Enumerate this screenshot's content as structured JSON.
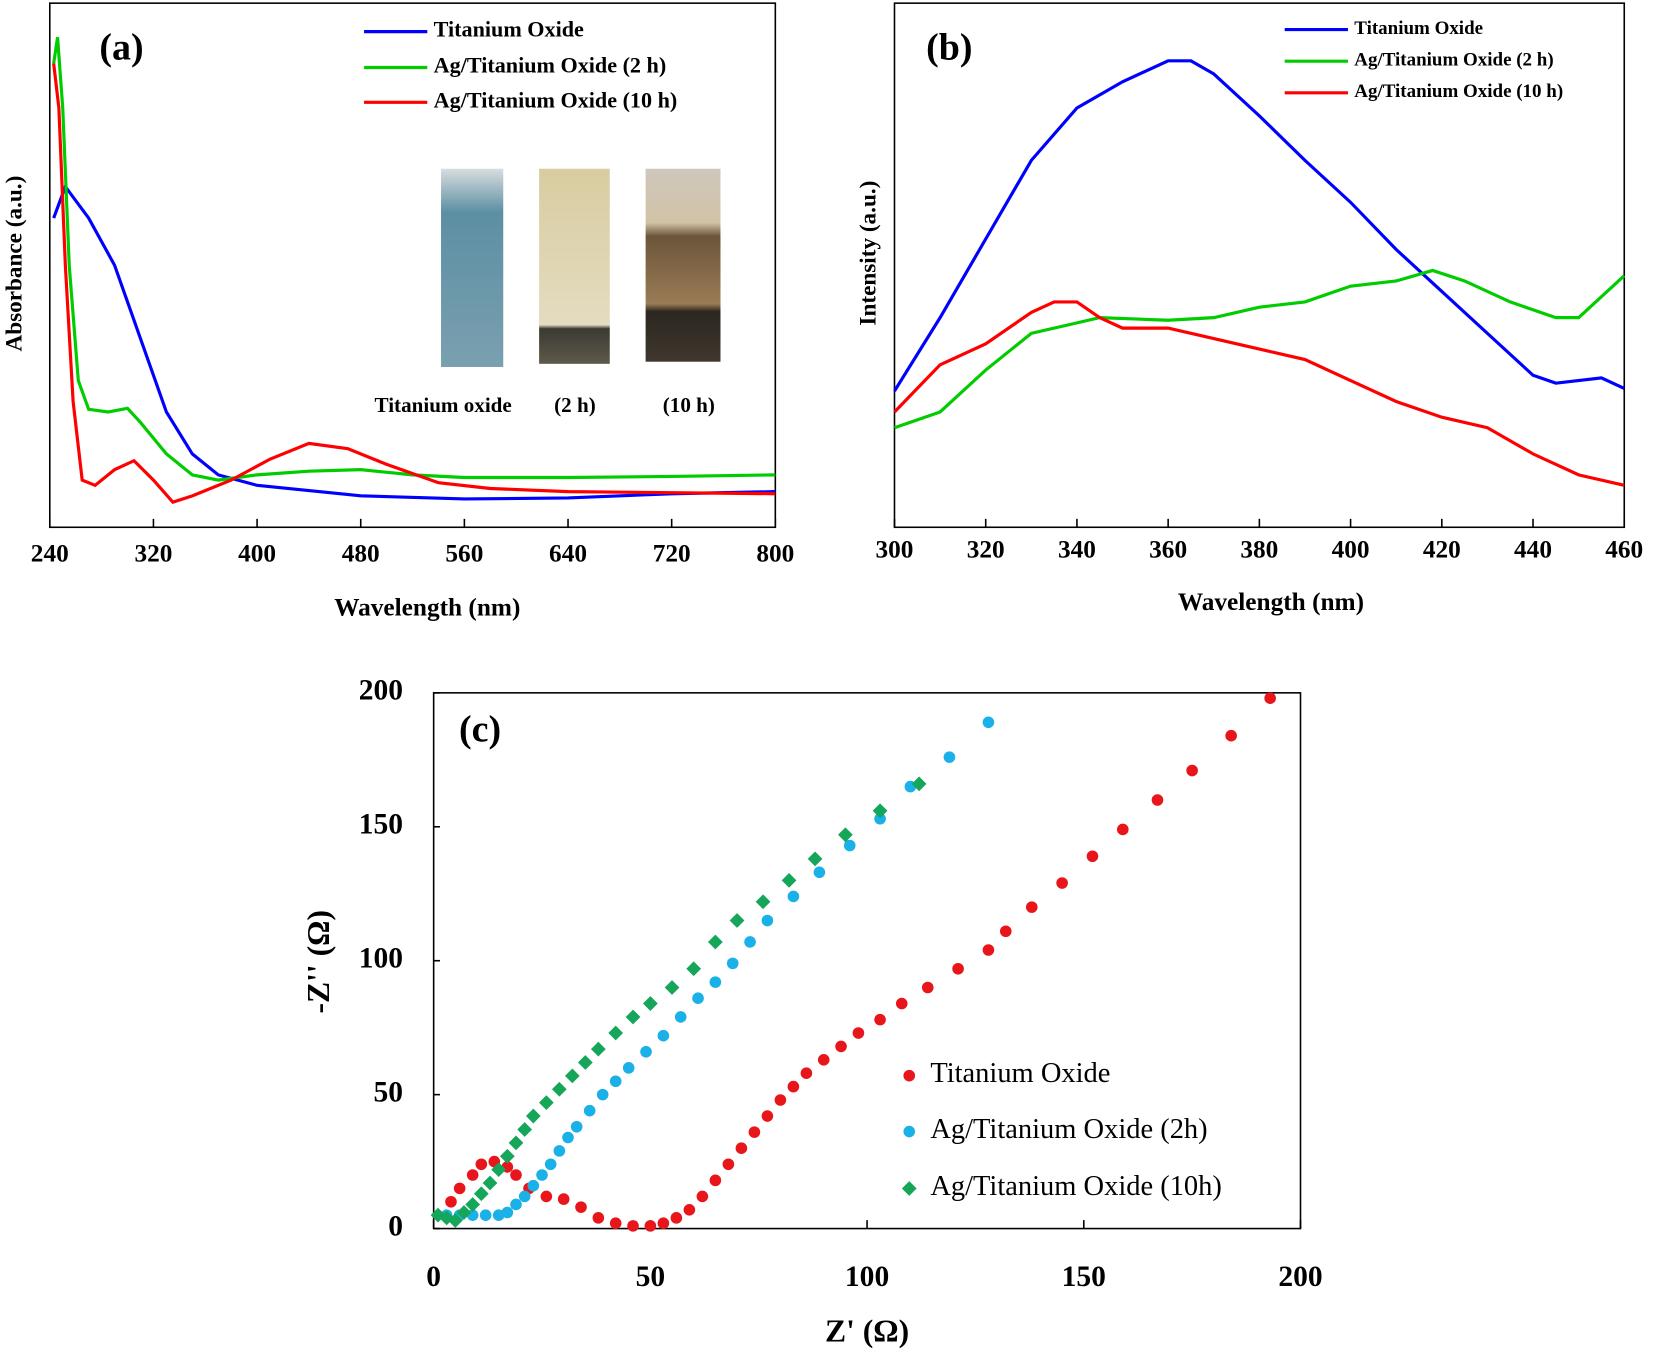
{
  "chart_data": [
    {
      "type": "line",
      "panel": "(a)",
      "x_label": "Wavelength (nm)",
      "y_label": "Absorbance (a.u.)",
      "xlim": [
        240,
        800
      ],
      "xticks": [
        240,
        320,
        400,
        480,
        560,
        640,
        720,
        800
      ],
      "ylim": [
        0,
        1
      ],
      "annotations": [
        "Titanium oxide",
        "(2 h)",
        "(10 h)"
      ],
      "series": [
        {
          "name": "Titanium Oxide",
          "color": "#0000ff",
          "x": [
            243,
            252,
            270,
            290,
            310,
            330,
            350,
            370,
            400,
            480,
            560,
            640,
            720,
            800
          ],
          "values": [
            0.59,
            0.65,
            0.59,
            0.5,
            0.36,
            0.22,
            0.14,
            0.1,
            0.08,
            0.06,
            0.054,
            0.056,
            0.064,
            0.068
          ]
        },
        {
          "name": "Ag/Titanium Oxide  (2 h)",
          "color": "#00cc00",
          "x": [
            243,
            246,
            250,
            255,
            262,
            270,
            285,
            300,
            310,
            330,
            350,
            370,
            400,
            440,
            480,
            520,
            560,
            640,
            720,
            800
          ],
          "values": [
            0.885,
            0.935,
            0.8,
            0.5,
            0.28,
            0.225,
            0.22,
            0.227,
            0.2,
            0.14,
            0.1,
            0.09,
            0.1,
            0.107,
            0.11,
            0.1,
            0.095,
            0.095,
            0.097,
            0.1
          ]
        },
        {
          "name": "Ag/Titanium Oxide  (10 h)",
          "color": "#ff0000",
          "x": [
            243,
            247,
            252,
            258,
            265,
            275,
            290,
            305,
            320,
            335,
            350,
            380,
            410,
            440,
            470,
            500,
            540,
            580,
            640,
            720,
            800
          ],
          "values": [
            0.885,
            0.8,
            0.5,
            0.24,
            0.09,
            0.08,
            0.11,
            0.127,
            0.09,
            0.048,
            0.06,
            0.09,
            0.13,
            0.16,
            0.15,
            0.12,
            0.085,
            0.074,
            0.068,
            0.066,
            0.064
          ]
        }
      ]
    },
    {
      "type": "line",
      "panel": "(b)",
      "x_label": "Wavelength (nm)",
      "y_label": "Intensity (a.u.)",
      "xlim": [
        300,
        460
      ],
      "xticks": [
        300,
        320,
        340,
        360,
        380,
        400,
        420,
        440,
        460
      ],
      "ylim": [
        0,
        1
      ],
      "series": [
        {
          "name": "Titanium Oxide",
          "color": "#0000ff",
          "x": [
            300,
            310,
            320,
            330,
            340,
            350,
            360,
            365,
            370,
            380,
            390,
            400,
            410,
            420,
            430,
            440,
            445,
            455,
            460
          ],
          "values": [
            0.26,
            0.4,
            0.55,
            0.7,
            0.8,
            0.85,
            0.89,
            0.89,
            0.865,
            0.785,
            0.7,
            0.62,
            0.53,
            0.45,
            0.37,
            0.29,
            0.275,
            0.285,
            0.265
          ]
        },
        {
          "name": "Ag/Titanium Oxide (2 h)",
          "color": "#00cc00",
          "x": [
            300,
            310,
            320,
            330,
            340,
            345,
            360,
            370,
            380,
            390,
            400,
            410,
            418,
            425,
            435,
            445,
            450,
            460
          ],
          "values": [
            0.19,
            0.22,
            0.3,
            0.37,
            0.39,
            0.4,
            0.395,
            0.4,
            0.42,
            0.43,
            0.46,
            0.47,
            0.49,
            0.47,
            0.43,
            0.4,
            0.4,
            0.48
          ]
        },
        {
          "name": "Ag/Titanium Oxide  (10 h)",
          "color": "#ff0000",
          "x": [
            300,
            310,
            320,
            330,
            335,
            340,
            345,
            350,
            360,
            370,
            380,
            390,
            400,
            410,
            420,
            430,
            440,
            450,
            460
          ],
          "values": [
            0.22,
            0.31,
            0.35,
            0.41,
            0.43,
            0.43,
            0.4,
            0.38,
            0.38,
            0.36,
            0.34,
            0.32,
            0.28,
            0.24,
            0.21,
            0.19,
            0.14,
            0.1,
            0.08
          ]
        }
      ]
    },
    {
      "type": "scatter",
      "panel": "(c)",
      "x_label": "Z' (Ω)",
      "y_label": "-Z'' (Ω)",
      "xlim": [
        0,
        200
      ],
      "xticks": [
        0,
        50,
        100,
        150,
        200
      ],
      "ylim": [
        0,
        200
      ],
      "yticks": [
        0,
        50,
        100,
        150,
        200
      ],
      "series": [
        {
          "name": "Titanium Oxide",
          "color": "#e8151b",
          "marker": "circle",
          "x": [
            4,
            6,
            9,
            11,
            14,
            17,
            19,
            22,
            26,
            30,
            34,
            38,
            42,
            46,
            50,
            53,
            56,
            59,
            62,
            65,
            68,
            71,
            74,
            77,
            80,
            83,
            86,
            90,
            94,
            98,
            103,
            108,
            114,
            121,
            128,
            132,
            138,
            145,
            152,
            159,
            167,
            175,
            184,
            193
          ],
          "values": [
            10,
            15,
            20,
            24,
            25,
            23,
            20,
            15,
            12,
            11,
            8,
            4,
            2,
            1,
            1,
            2,
            4,
            7,
            12,
            18,
            24,
            30,
            36,
            42,
            48,
            53,
            58,
            63,
            68,
            73,
            78,
            84,
            90,
            97,
            104,
            111,
            120,
            129,
            139,
            149,
            160,
            171,
            184,
            198
          ]
        },
        {
          "name": "Ag/Titanium Oxide (2h)",
          "color": "#1ab0e8",
          "marker": "circle",
          "x": [
            3,
            6,
            9,
            12,
            15,
            17,
            19,
            21,
            23,
            25,
            27,
            29,
            31,
            33,
            36,
            39,
            42,
            45,
            49,
            53,
            57,
            61,
            65,
            69,
            73,
            77,
            83,
            89,
            96,
            103,
            110,
            119,
            128
          ],
          "values": [
            5,
            5,
            5,
            5,
            5,
            6,
            9,
            12,
            16,
            20,
            24,
            29,
            34,
            38,
            44,
            50,
            55,
            60,
            66,
            72,
            79,
            86,
            92,
            99,
            107,
            115,
            124,
            133,
            143,
            153,
            165,
            176,
            189
          ]
        },
        {
          "name": "Ag/Titanium Oxide (10h)",
          "color": "#16a65a",
          "marker": "diamond",
          "x": [
            1,
            3,
            5,
            7,
            9,
            11,
            13,
            15,
            17,
            19,
            21,
            23,
            26,
            29,
            32,
            35,
            38,
            42,
            46,
            50,
            55,
            60,
            65,
            70,
            76,
            82,
            88,
            95,
            103,
            112
          ],
          "values": [
            5,
            4,
            3,
            6,
            9,
            13,
            17,
            22,
            27,
            32,
            37,
            42,
            47,
            52,
            57,
            62,
            67,
            73,
            79,
            84,
            90,
            97,
            107,
            115,
            122,
            130,
            138,
            147,
            156,
            166
          ]
        }
      ]
    }
  ]
}
